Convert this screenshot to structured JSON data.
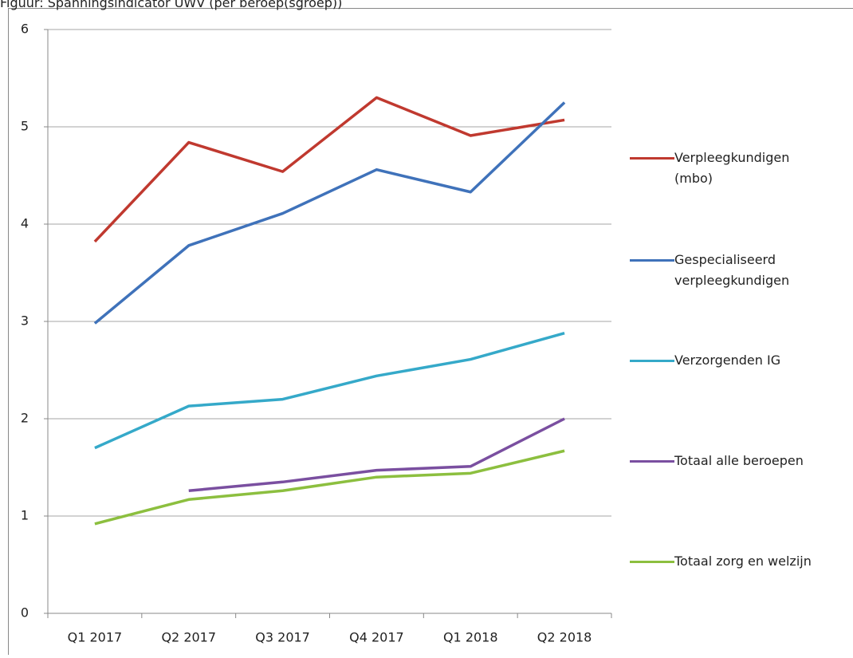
{
  "chart_data": {
    "type": "line",
    "title": "Figuur: Spanningsindicator UWV (per beroep(sgroep))",
    "categories": [
      "Q1 2017",
      "Q2 2017",
      "Q3 2017",
      "Q4 2017",
      "Q1 2018",
      "Q2 2018"
    ],
    "series": [
      {
        "name": "Verpleegkundigen (mbo)",
        "color": "#c0392f",
        "values": [
          3.82,
          4.84,
          4.54,
          5.3,
          4.91,
          5.07
        ]
      },
      {
        "name": "Gespecialiseerd verpleegkundigen",
        "color": "#3f72ba",
        "values": [
          2.98,
          3.78,
          4.11,
          4.56,
          4.33,
          5.25
        ]
      },
      {
        "name": "Verzorgenden IG",
        "color": "#35a9c9",
        "values": [
          1.7,
          2.13,
          2.2,
          2.44,
          2.61,
          2.88
        ]
      },
      {
        "name": "Totaal alle beroepen",
        "color": "#7a4fa0",
        "values": [
          null,
          1.26,
          1.35,
          1.47,
          1.51,
          2.0
        ]
      },
      {
        "name": "Totaal zorg en welzijn",
        "color": "#8cbf3f",
        "values": [
          0.92,
          1.17,
          1.26,
          1.4,
          1.44,
          1.67
        ]
      }
    ],
    "ylim": [
      0,
      6
    ],
    "yticks": [
      0,
      1,
      2,
      3,
      4,
      5,
      6
    ],
    "grid": true,
    "legend": "right"
  }
}
